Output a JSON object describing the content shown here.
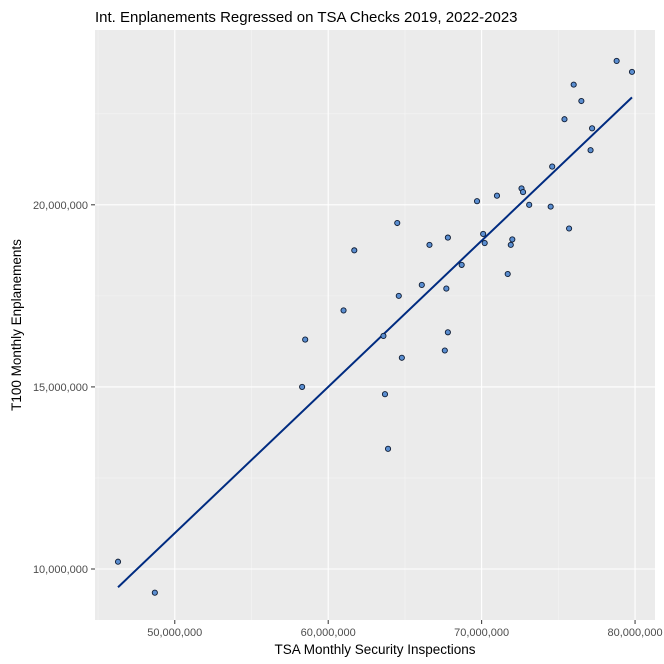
{
  "chart_data": {
    "type": "scatter",
    "title": "Int. Enplanements Regressed on TSA Checks 2019, 2022-2023",
    "xlabel": "TSA Monthly Security Inspections",
    "ylabel": "T100 Monthly Enplanements",
    "xlim": [
      44800000,
      81300000
    ],
    "ylim": [
      8600000,
      24800000
    ],
    "x_ticks": [
      50000000,
      60000000,
      70000000,
      80000000
    ],
    "x_tick_labels": [
      "50,000,000",
      "60,000,000",
      "70,000,000",
      "80,000,000"
    ],
    "y_ticks": [
      10000000,
      15000000,
      20000000
    ],
    "y_tick_labels": [
      "10,000,000",
      "15,000,000",
      "20,000,000"
    ],
    "grid": true,
    "legend": "none",
    "colors": {
      "panel_background": "#ebebeb",
      "grid_major": "#ffffff",
      "grid_minor": "#f5f5f5",
      "point_fill": "#5b8ed0",
      "point_stroke": "#0d1b33",
      "fit_line": "#002b80"
    },
    "points": {
      "x": [
        46300000,
        48700000,
        58300000,
        58500000,
        61000000,
        61700000,
        63600000,
        63700000,
        63900000,
        64500000,
        64600000,
        64800000,
        66100000,
        66600000,
        67600000,
        67700000,
        67800000,
        67800000,
        68700000,
        69700000,
        70100000,
        70200000,
        71000000,
        71700000,
        71900000,
        72000000,
        72600000,
        72700000,
        73100000,
        74500000,
        74600000,
        75400000,
        75700000,
        76000000,
        76500000,
        77100000,
        77200000,
        78800000,
        79800000
      ],
      "y": [
        10200000,
        9350000,
        15000000,
        16300000,
        17100000,
        18750000,
        16400000,
        14800000,
        13300000,
        19500000,
        17500000,
        15800000,
        17800000,
        18900000,
        16000000,
        17700000,
        19100000,
        16500000,
        18350000,
        20100000,
        19200000,
        18950000,
        20250000,
        18100000,
        18900000,
        19050000,
        20450000,
        20350000,
        20000000,
        19950000,
        21050000,
        22350000,
        19350000,
        23300000,
        22850000,
        21500000,
        22100000,
        23950000,
        23650000
      ]
    },
    "fit_line": {
      "x": [
        46300000,
        79800000
      ],
      "y": [
        9500000,
        22950000
      ]
    }
  }
}
